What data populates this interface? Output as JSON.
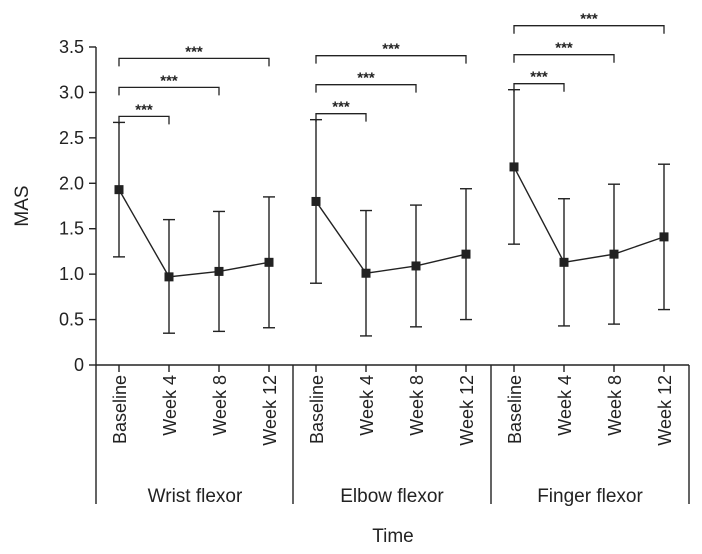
{
  "chart_data": {
    "type": "line",
    "ylabel": "MAS",
    "xlabel": "Time",
    "ylim": [
      0,
      3.5
    ],
    "yticks": [
      {
        "value": 0,
        "label": "0"
      },
      {
        "value": 0.5,
        "label": "0.5"
      },
      {
        "value": 1.0,
        "label": "1.0"
      },
      {
        "value": 1.5,
        "label": "1.5"
      },
      {
        "value": 2.0,
        "label": "2.0"
      },
      {
        "value": 2.5,
        "label": "2.5"
      },
      {
        "value": 3.0,
        "label": "3.0"
      },
      {
        "value": 3.5,
        "label": "3.5"
      }
    ],
    "categories": [
      "Baseline",
      "Week 4",
      "Week 8",
      "Week 12"
    ],
    "significance_label": "***",
    "groups": [
      {
        "name": "Wrist flexor",
        "mean": [
          1.93,
          0.97,
          1.03,
          1.13
        ],
        "lower": [
          1.19,
          0.35,
          0.37,
          0.41
        ],
        "upper": [
          2.67,
          1.6,
          1.69,
          1.85
        ],
        "brackets": [
          {
            "to": 1,
            "label": "***"
          },
          {
            "to": 2,
            "label": "***"
          },
          {
            "to": 3,
            "label": "***"
          }
        ]
      },
      {
        "name": "Elbow flexor",
        "mean": [
          1.8,
          1.01,
          1.09,
          1.22
        ],
        "lower": [
          0.9,
          0.32,
          0.42,
          0.5
        ],
        "upper": [
          2.7,
          1.7,
          1.76,
          1.94
        ],
        "brackets": [
          {
            "to": 1,
            "label": "***"
          },
          {
            "to": 2,
            "label": "***"
          },
          {
            "to": 3,
            "label": "***"
          }
        ]
      },
      {
        "name": "Finger flexor",
        "mean": [
          2.18,
          1.13,
          1.22,
          1.41
        ],
        "lower": [
          1.33,
          0.43,
          0.45,
          0.61
        ],
        "upper": [
          3.03,
          1.83,
          1.99,
          2.21
        ],
        "brackets": [
          {
            "to": 1,
            "label": "***"
          },
          {
            "to": 2,
            "label": "***"
          },
          {
            "to": 3,
            "label": "***"
          }
        ]
      }
    ]
  }
}
